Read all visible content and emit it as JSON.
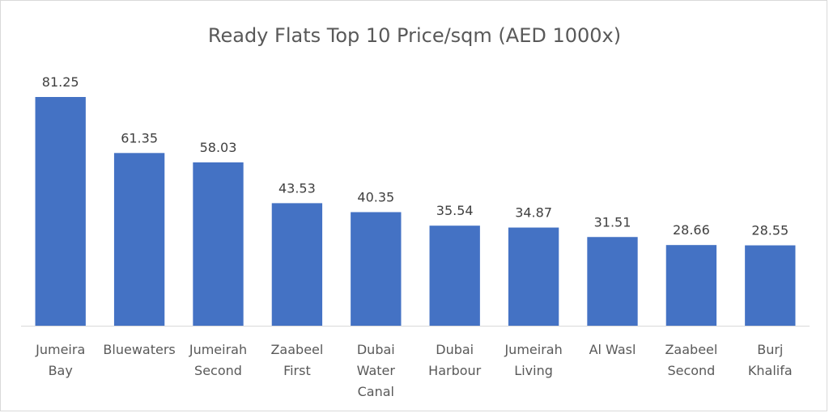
{
  "chart_data": {
    "type": "bar",
    "title": "Ready Flats Top 10 Price/sqm (AED 1000x)",
    "xlabel": "",
    "ylabel": "",
    "categories": [
      [
        "Jumeira",
        "Bay"
      ],
      [
        "Bluewaters"
      ],
      [
        "Jumeirah",
        "Second"
      ],
      [
        "Zaabeel",
        "First"
      ],
      [
        "Dubai",
        "Water",
        "Canal"
      ],
      [
        "Dubai",
        "Harbour"
      ],
      [
        "Jumeirah",
        "Living"
      ],
      [
        "Al Wasl"
      ],
      [
        "Zaabeel",
        "Second"
      ],
      [
        "Burj",
        "Khalifa"
      ]
    ],
    "values": [
      81.25,
      61.35,
      58.03,
      43.53,
      40.35,
      35.54,
      34.87,
      31.51,
      28.66,
      28.55
    ],
    "value_labels": [
      "81.25",
      "61.35",
      "58.03",
      "43.53",
      "40.35",
      "35.54",
      "34.87",
      "31.51",
      "28.66",
      "28.55"
    ],
    "ylim": [
      0,
      90
    ],
    "grid": false,
    "legend": "none",
    "bar_color": "#4472c4",
    "axis_color": "#d9d9d9"
  }
}
